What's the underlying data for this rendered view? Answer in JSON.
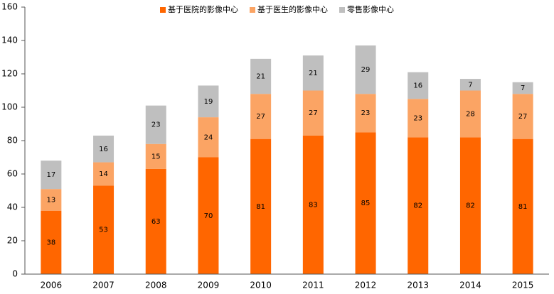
{
  "chart_data": {
    "type": "stacked_bar",
    "categories": [
      "2006",
      "2007",
      "2008",
      "2009",
      "2010",
      "2011",
      "2012",
      "2013",
      "2014",
      "2015"
    ],
    "series": [
      {
        "name": "基于医院的影像中心",
        "color": "#ff6600",
        "values": [
          38,
          53,
          63,
          70,
          81,
          83,
          85,
          82,
          82,
          81
        ]
      },
      {
        "name": "基于医生的影像中心",
        "color": "#fba464",
        "values": [
          13,
          14,
          15,
          24,
          27,
          27,
          23,
          23,
          28,
          27
        ]
      },
      {
        "name": "零售影像中心",
        "color": "#bfbfbf",
        "values": [
          17,
          16,
          23,
          19,
          21,
          21,
          29,
          16,
          7,
          7
        ]
      }
    ],
    "ylim": [
      0,
      160
    ],
    "yticks": [
      0,
      20,
      40,
      60,
      80,
      100,
      120,
      140,
      160
    ],
    "grid": false,
    "legend": "top"
  }
}
